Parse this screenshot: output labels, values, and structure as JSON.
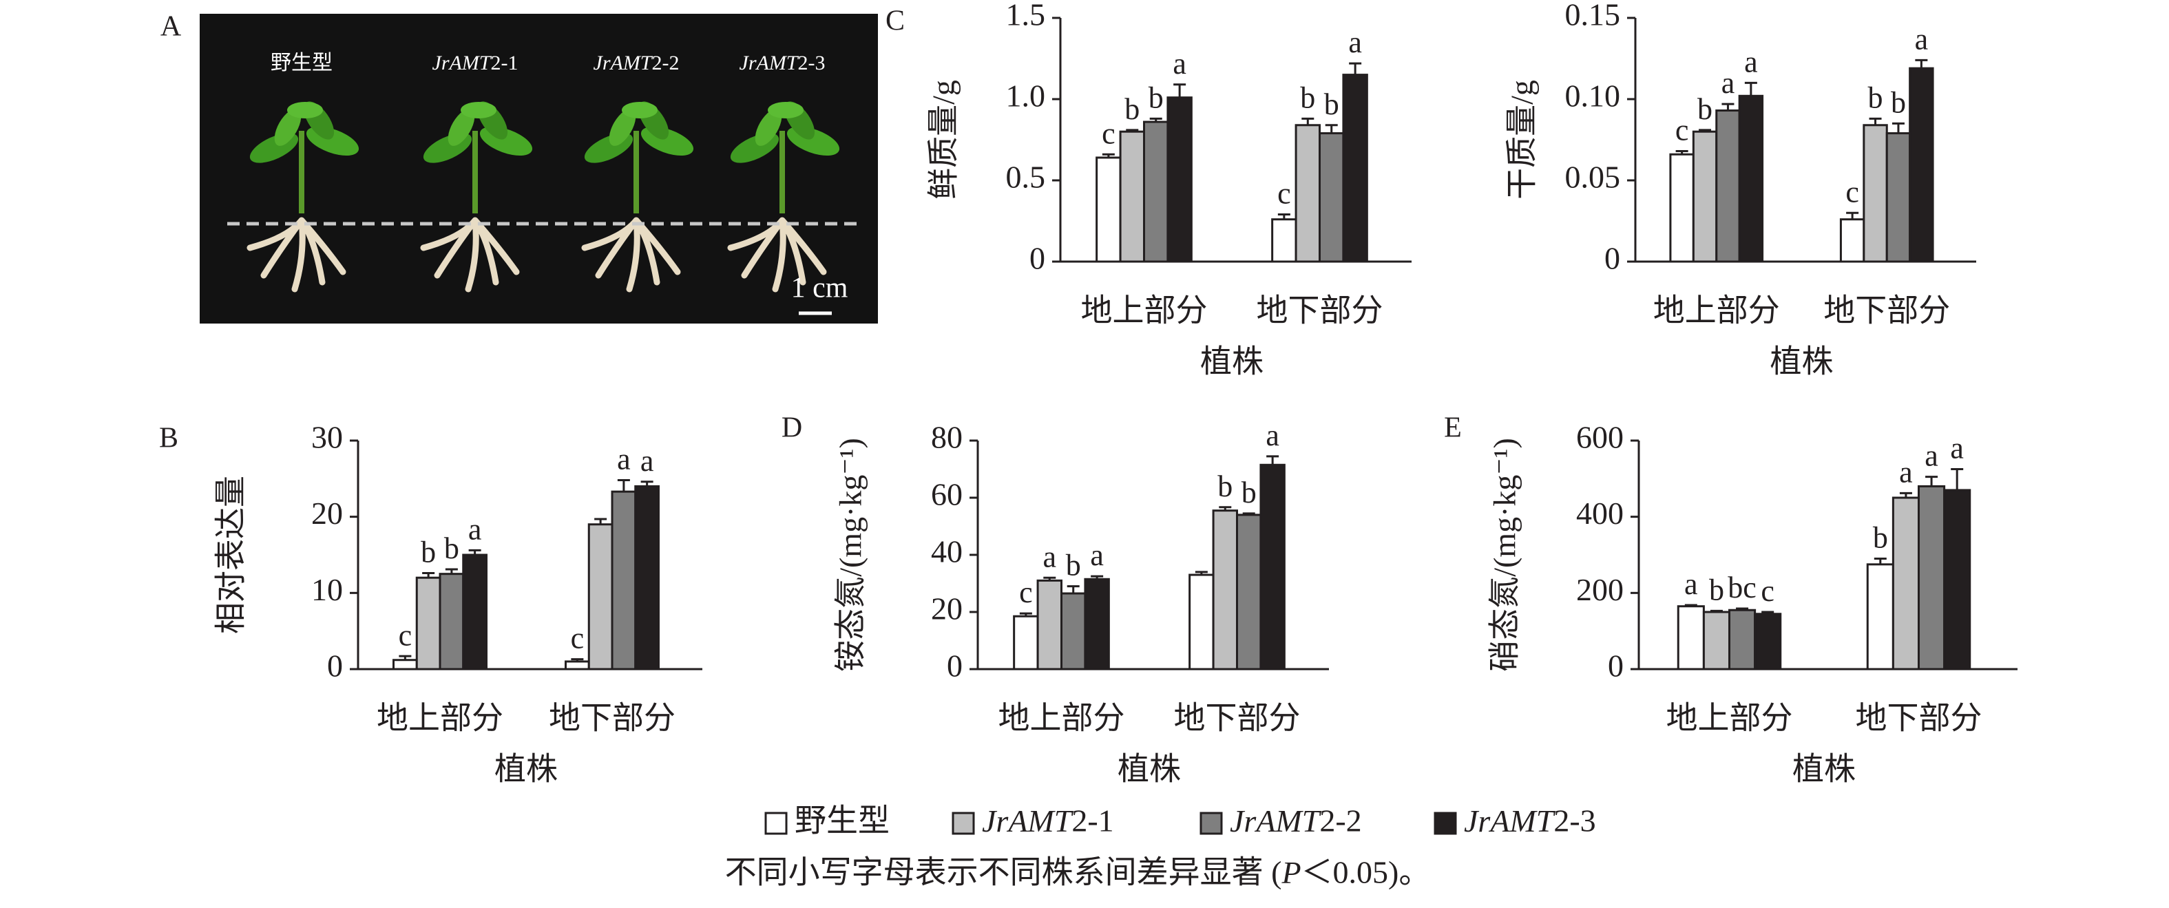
{
  "photo": {
    "panel": "A",
    "labels": [
      "野生型",
      "JrAMT2-1",
      "JrAMT2-2",
      "JrAMT2-3"
    ],
    "scale_bar": "1 cm"
  },
  "legend": [
    {
      "name": "野生型",
      "color": "#ffffff"
    },
    {
      "name": "JrAMT2-1",
      "color": "#bfbfbf"
    },
    {
      "name": "JrAMT2-2",
      "color": "#7f7f7f"
    },
    {
      "name": "JrAMT2-3",
      "color": "#231f20"
    }
  ],
  "chart_data": [
    {
      "type": "bar",
      "title": "C",
      "ylabel": "鲜质量/g",
      "xlabel": "植株",
      "categories": [
        "地上部分",
        "地下部分"
      ],
      "ylim": [
        0,
        1.5
      ],
      "yticks": [
        0,
        0.5,
        {
          "value": 1,
          "label": "1.0"
        },
        1.5
      ],
      "series": [
        {
          "values": [
            0.64,
            0.26
          ],
          "errors": [
            0.02,
            0.03
          ],
          "sig_labels": [
            "c",
            "c"
          ]
        },
        {
          "values": [
            0.8,
            0.84
          ],
          "errors": [
            0.01,
            0.04
          ],
          "sig_labels": [
            "b",
            "b"
          ]
        },
        {
          "values": [
            0.86,
            0.79
          ],
          "errors": [
            0.02,
            0.05
          ],
          "sig_labels": [
            "b",
            "b"
          ]
        },
        {
          "values": [
            1.01,
            1.15
          ],
          "errors": [
            0.08,
            0.07
          ],
          "sig_labels": [
            "a",
            "a"
          ]
        }
      ]
    },
    {
      "type": "bar",
      "ylabel": "干质量/g",
      "xlabel": "植株",
      "categories": [
        "地上部分",
        "地下部分"
      ],
      "ylim": [
        0,
        0.15
      ],
      "yticks": [
        0,
        0.05,
        {
          "value": 0.1,
          "label": "0.10"
        },
        0.15
      ],
      "series": [
        {
          "values": [
            0.066,
            0.026
          ],
          "errors": [
            0.002,
            0.004
          ],
          "sig_labels": [
            "c",
            "c"
          ]
        },
        {
          "values": [
            0.08,
            0.084
          ],
          "errors": [
            0.001,
            0.004
          ],
          "sig_labels": [
            "b",
            "b"
          ]
        },
        {
          "values": [
            0.093,
            0.079
          ],
          "errors": [
            0.004,
            0.006
          ],
          "sig_labels": [
            "a",
            "b"
          ]
        },
        {
          "values": [
            0.102,
            0.119
          ],
          "errors": [
            0.008,
            0.005
          ],
          "sig_labels": [
            "a",
            "a"
          ]
        }
      ]
    },
    {
      "type": "bar",
      "title": "B",
      "ylabel": "相对表达量",
      "xlabel": "植株",
      "categories": [
        "地上部分",
        "地下部分"
      ],
      "ylim": [
        0,
        30
      ],
      "yticks": [
        0,
        10,
        20,
        30
      ],
      "series": [
        {
          "values": [
            1.2,
            1.0
          ],
          "errors": [
            0.5,
            0.3
          ],
          "sig_labels": [
            "c",
            "c"
          ]
        },
        {
          "values": [
            12,
            19
          ],
          "errors": [
            0.6,
            0.7
          ],
          "sig_labels": [
            "b",
            null
          ]
        },
        {
          "values": [
            12.5,
            23.3
          ],
          "errors": [
            0.6,
            1.5
          ],
          "sig_labels": [
            "b",
            "a"
          ]
        },
        {
          "values": [
            15,
            24
          ],
          "errors": [
            0.6,
            0.6
          ],
          "sig_labels": [
            "a",
            "a"
          ]
        }
      ]
    },
    {
      "type": "bar",
      "title": "D",
      "ylabel": "铵态氮/(mg·kg⁻¹)",
      "xlabel": "植株",
      "categories": [
        "地上部分",
        "地下部分"
      ],
      "ylim": [
        0,
        80
      ],
      "yticks": [
        0,
        20,
        40,
        60,
        80
      ],
      "series": [
        {
          "values": [
            18.5,
            33
          ],
          "errors": [
            1,
            1
          ],
          "sig_labels": [
            "c",
            null
          ]
        },
        {
          "values": [
            31,
            55.5
          ],
          "errors": [
            1,
            1.2
          ],
          "sig_labels": [
            "a",
            "b"
          ]
        },
        {
          "values": [
            26.5,
            54
          ],
          "errors": [
            2.5,
            0.5
          ],
          "sig_labels": [
            "b",
            "b"
          ]
        },
        {
          "values": [
            31.5,
            71.5
          ],
          "errors": [
            1,
            3
          ],
          "sig_labels": [
            "a",
            "a"
          ]
        }
      ]
    },
    {
      "type": "bar",
      "title": "E",
      "ylabel": "硝态氮/(mg·kg⁻¹)",
      "xlabel": "植株",
      "categories": [
        "地上部分",
        "地下部分"
      ],
      "ylim": [
        0,
        600
      ],
      "yticks": [
        0,
        200,
        400,
        600
      ],
      "series": [
        {
          "values": [
            165,
            275
          ],
          "errors": [
            3,
            15
          ],
          "sig_labels": [
            "a",
            "b"
          ]
        },
        {
          "values": [
            150,
            450
          ],
          "errors": [
            3,
            12
          ],
          "sig_labels": [
            "b",
            "a"
          ]
        },
        {
          "values": [
            155,
            480
          ],
          "errors": [
            4,
            25
          ],
          "sig_labels": [
            "bc",
            "a"
          ]
        },
        {
          "values": [
            145,
            470
          ],
          "errors": [
            5,
            55
          ],
          "sig_labels": [
            "c",
            "a"
          ]
        }
      ]
    }
  ],
  "footnote": "不同小写字母表示不同株系间差异显著 (P＜0.05)。"
}
